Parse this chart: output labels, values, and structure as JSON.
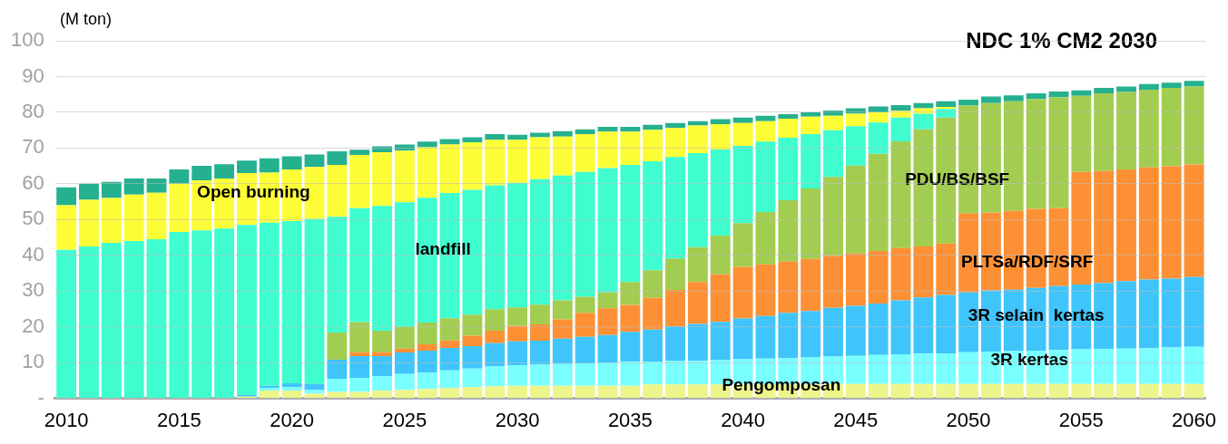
{
  "chart_data": {
    "type": "bar",
    "stacked": true,
    "title": "NDC 1% CM2 2030",
    "ylabel": "(M ton)",
    "categories": [
      "2010",
      null,
      null,
      null,
      null,
      "2015",
      null,
      null,
      null,
      null,
      "2020",
      null,
      null,
      null,
      null,
      "2025",
      null,
      null,
      null,
      null,
      "2030",
      null,
      null,
      null,
      null,
      "2035",
      null,
      null,
      null,
      null,
      "2040",
      null,
      null,
      null,
      null,
      "2045",
      null,
      null,
      null,
      null,
      "2050",
      null,
      null,
      null,
      null,
      "2055",
      null,
      null,
      null,
      null,
      "2060"
    ],
    "ylim": [
      0,
      100
    ],
    "yticks": [
      {
        "value": 0,
        "label": "-"
      },
      10,
      20,
      30,
      40,
      50,
      60,
      70,
      80,
      90,
      100
    ],
    "grid": "y",
    "legend": false,
    "series": [
      {
        "name": "Pengomposan",
        "color": "#eef58a",
        "values": [
          0,
          0,
          0,
          0,
          0,
          0,
          0,
          0,
          0.5,
          2.2,
          2.2,
          1.3,
          1.8,
          1.8,
          2.2,
          2.4,
          2.6,
          2.9,
          3.1,
          3.4,
          3.5,
          3.5,
          3.5,
          3.5,
          3.5,
          3.5,
          3.9,
          3.9,
          3.9,
          3.9,
          3.9,
          3.9,
          3.9,
          3.9,
          4.0,
          4.0,
          4.0,
          4.0,
          4.0,
          4.0,
          4.0,
          4.0,
          4.0,
          4.0,
          4.0,
          4.0,
          4.0,
          4.0,
          4.0,
          4.0,
          4.0
        ]
      },
      {
        "name": "3R kertas",
        "color": "#7affff",
        "values": [
          0,
          0,
          0,
          0,
          0,
          0,
          0,
          0,
          0,
          0.7,
          0.9,
          1.1,
          3.7,
          3.9,
          4.0,
          4.4,
          4.6,
          4.9,
          5.2,
          5.5,
          5.7,
          5.9,
          6.1,
          6.3,
          6.5,
          6.7,
          6.4,
          6.5,
          6.6,
          6.8,
          7.0,
          7.2,
          7.3,
          7.5,
          7.7,
          7.9,
          8.1,
          8.3,
          8.5,
          8.6,
          8.9,
          9.1,
          9.2,
          9.3,
          9.5,
          9.7,
          9.8,
          9.9,
          10.0,
          10.2,
          10.4
        ]
      },
      {
        "name": "3R selain  kertas",
        "color": "#3fc5fb",
        "values": [
          0,
          0,
          0,
          0,
          0,
          0,
          0,
          0,
          0.5,
          0.6,
          1.1,
          1.6,
          5.3,
          6.1,
          5.6,
          6.0,
          6.1,
          6.3,
          6.3,
          6.5,
          6.7,
          6.7,
          7.1,
          7.4,
          7.7,
          8.4,
          8.9,
          9.7,
          10.3,
          10.7,
          11.4,
          11.9,
          12.7,
          13.0,
          13.6,
          14.0,
          14.4,
          15.1,
          15.7,
          16.3,
          16.7,
          17.1,
          17.2,
          17.6,
          17.9,
          18.1,
          18.5,
          18.9,
          19.2,
          19.3,
          19.5
        ]
      },
      {
        "name": "PLTSa/RDF/SRF",
        "color": "#fd9035",
        "values": [
          0,
          0,
          0,
          0,
          0,
          0,
          0,
          0,
          0,
          0,
          0,
          0,
          0,
          1.1,
          1.1,
          1.1,
          1.8,
          2.1,
          2.9,
          3.5,
          4.4,
          4.6,
          5.4,
          6.7,
          7.5,
          7.5,
          8.9,
          10.2,
          11.7,
          13.3,
          14.5,
          14.5,
          14.3,
          14.6,
          14.6,
          14.6,
          14.7,
          14.6,
          14.3,
          14.4,
          22.1,
          21.7,
          22.0,
          22.1,
          21.8,
          31.5,
          31.3,
          31.2,
          31.4,
          31.4,
          31.5
        ]
      },
      {
        "name": "PDU/BS/BSF",
        "color": "#a2cd50",
        "values": [
          0,
          0,
          0,
          0,
          0,
          0,
          0,
          0,
          0,
          0,
          0,
          0,
          7.6,
          8.4,
          6.0,
          6.1,
          6.1,
          6.2,
          5.9,
          6.0,
          5.1,
          5.5,
          5.3,
          4.5,
          4.4,
          6.4,
          7.7,
          8.8,
          9.8,
          10.8,
          12.2,
          14.6,
          17.2,
          19.7,
          22.0,
          24.6,
          27.2,
          29.9,
          32.7,
          35.2,
          30.2,
          30.7,
          30.7,
          30.7,
          31.0,
          21.3,
          21.7,
          21.7,
          21.7,
          21.9,
          21.8
        ]
      },
      {
        "name": "landfill",
        "color": "#3ffdcf",
        "values": [
          41.5,
          42.5,
          43.5,
          44,
          44.5,
          46.5,
          47,
          47.5,
          47.5,
          45.6,
          45.4,
          46.2,
          32.4,
          31.9,
          34.9,
          34.8,
          34.9,
          35,
          34.9,
          34.7,
          34.9,
          35.1,
          34.9,
          34.9,
          34.8,
          32.8,
          30.5,
          28.4,
          26.3,
          24.1,
          21.6,
          19.7,
          17.5,
          15.2,
          13.1,
          11.0,
          8.7,
          6.6,
          4.4,
          2.4,
          0,
          0,
          0,
          0,
          0,
          0,
          0,
          0,
          0,
          0,
          0
        ]
      },
      {
        "name": "Open burning",
        "color": "#fdfd37",
        "values": [
          12.5,
          13,
          12.5,
          13,
          13,
          13.5,
          14,
          14,
          14.5,
          14,
          14.4,
          14.5,
          14.5,
          14.9,
          15,
          14.5,
          14.1,
          13.6,
          13.3,
          12.7,
          12.0,
          11.7,
          10.9,
          10.6,
          10.2,
          9.3,
          8.8,
          8.1,
          7.7,
          7.1,
          6.4,
          5.7,
          5.3,
          4.9,
          4.0,
          3.5,
          2.9,
          1.9,
          1.5,
          0.6,
          0,
          0,
          0,
          0,
          0,
          0,
          0,
          0,
          0,
          0,
          0
        ]
      },
      {
        "color": "#25b090",
        "values": [
          5,
          4.5,
          4.5,
          4.5,
          4,
          4,
          4,
          4,
          3.5,
          4,
          3.7,
          3.5,
          3.8,
          1.4,
          1.7,
          1.7,
          1.6,
          1.5,
          1.4,
          1.6,
          1.4,
          1.3,
          1.5,
          1.3,
          1.3,
          1.3,
          1.4,
          1.4,
          1.2,
          1.4,
          1.5,
          1.5,
          1.3,
          1.2,
          1.5,
          1.5,
          1.6,
          1.6,
          1.5,
          1.6,
          1.6,
          1.8,
          1.6,
          1.6,
          1.6,
          1.5,
          1.5,
          1.5,
          1.6,
          1.5,
          1.6
        ]
      }
    ]
  }
}
